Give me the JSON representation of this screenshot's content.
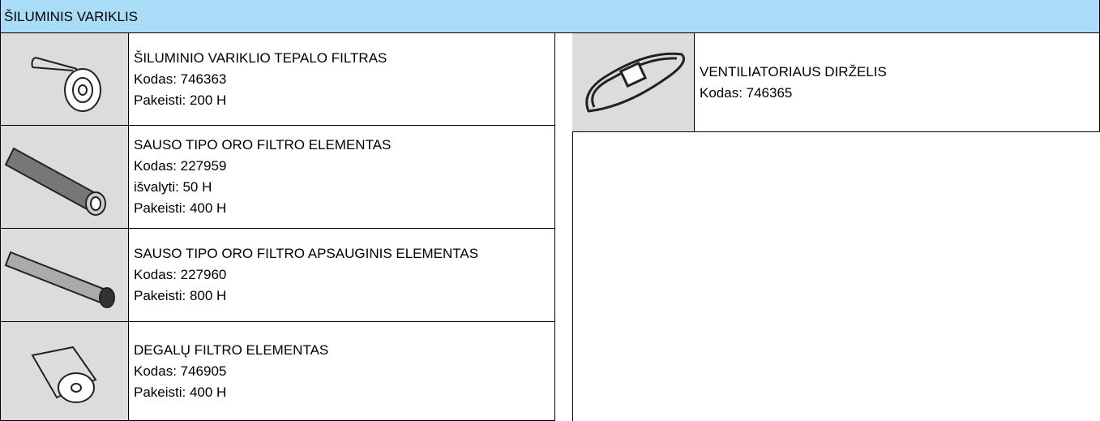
{
  "header": {
    "title": "ŠILUMINIS VARIKLIS"
  },
  "left": [
    {
      "lines": [
        "ŠILUMINIO VARIKLIO TEPALO FILTRAS",
        "Kodas: 746363",
        "Pakeisti: 200 H"
      ]
    },
    {
      "lines": [
        "SAUSO TIPO ORO FILTRO ELEMENTAS",
        "Kodas: 227959",
        "išvalyti: 50 H",
        "Pakeisti: 400 H"
      ]
    },
    {
      "lines": [
        "SAUSO TIPO ORO FILTRO APSAUGINIS ELEMENTAS",
        "Kodas: 227960",
        "Pakeisti: 800 H"
      ]
    },
    {
      "lines": [
        "DEGALŲ FILTRO ELEMENTAS",
        "Kodas: 746905",
        "Pakeisti: 400 H"
      ]
    }
  ],
  "right": [
    {
      "lines": [
        "VENTILIATORIAUS DIRŽELIS",
        "Kodas: 746365"
      ]
    }
  ]
}
